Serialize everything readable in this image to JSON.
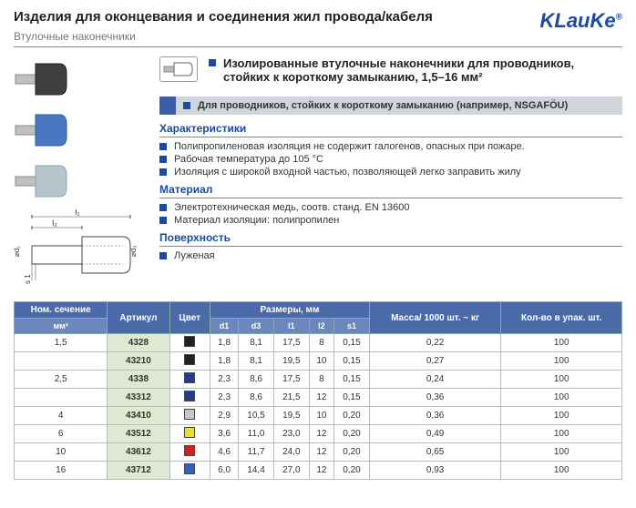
{
  "header": {
    "title": "Изделия для оконцевания и соединения жил провода/кабеля",
    "subtitle": "Втулочные наконечники",
    "brand": "KLauKe",
    "brand_mark": "®"
  },
  "visuals": {
    "ferrule_colors": [
      "#3f3f3f",
      "#4a78c0",
      "#b8c4cc"
    ],
    "pin_color": "#c0c0c0"
  },
  "product": {
    "headline": "Изолированные втулочные наконечники для проводников, стойких к короткому замыканию, 1,5–16 мм²",
    "note": "Для проводников, стойких к короткому замыканию (например, NSGAFÖU)",
    "sections": {
      "char_title": "Характеристики",
      "char_items": [
        "Полипропиленовая изоляция не содержит галогенов, опасных при пожаре.",
        "Рабочая температура до 105 °C",
        "Изоляция с широкой входной частью, позволяющей легко заправить жилу"
      ],
      "mat_title": "Материал",
      "mat_items": [
        "Электротехническая медь, соотв. станд. EN 13600",
        "Материал изоляции: полипропилен"
      ],
      "surf_title": "Поверхность",
      "surf_items": [
        "Луженая"
      ]
    }
  },
  "table": {
    "headers": {
      "nom": "Ном. сечение",
      "nom_sub": "мм²",
      "art": "Артикул",
      "color": "Цвет",
      "dims": "Размеры, мм",
      "d1": "d1",
      "d3": "d3",
      "l1": "l1",
      "l2": "l2",
      "s1": "s1",
      "mass": "Масса/ 1000 шт. ~ кг",
      "pack": "Кол-во в упак. шт."
    },
    "rows": [
      {
        "nom": "1,5",
        "art": "4328",
        "color": "#222222",
        "d1": "1,8",
        "d3": "8,1",
        "l1": "17,5",
        "l2": "8",
        "s1": "0,15",
        "mass": "0,22",
        "pack": "100"
      },
      {
        "nom": "",
        "art": "43210",
        "color": "#222222",
        "d1": "1,8",
        "d3": "8,1",
        "l1": "19,5",
        "l2": "10",
        "s1": "0,15",
        "mass": "0,27",
        "pack": "100"
      },
      {
        "nom": "2,5",
        "art": "4338",
        "color": "#2a3a8a",
        "d1": "2,3",
        "d3": "8,6",
        "l1": "17,5",
        "l2": "8",
        "s1": "0,15",
        "mass": "0,24",
        "pack": "100"
      },
      {
        "nom": "",
        "art": "43312",
        "color": "#2a3a8a",
        "d1": "2,3",
        "d3": "8,6",
        "l1": "21,5",
        "l2": "12",
        "s1": "0,15",
        "mass": "0,36",
        "pack": "100"
      },
      {
        "nom": "4",
        "art": "43410",
        "color": "#c8c8c8",
        "d1": "2,9",
        "d3": "10,5",
        "l1": "19,5",
        "l2": "10",
        "s1": "0,20",
        "mass": "0,36",
        "pack": "100"
      },
      {
        "nom": "6",
        "art": "43512",
        "color": "#e8e030",
        "d1": "3,6",
        "d3": "11,0",
        "l1": "23,0",
        "l2": "12",
        "s1": "0,20",
        "mass": "0,49",
        "pack": "100"
      },
      {
        "nom": "10",
        "art": "43612",
        "color": "#d02020",
        "d1": "4,6",
        "d3": "11,7",
        "l1": "24,0",
        "l2": "12",
        "s1": "0,20",
        "mass": "0,65",
        "pack": "100"
      },
      {
        "nom": "16",
        "art": "43712",
        "color": "#3060c0",
        "d1": "6,0",
        "d3": "14,4",
        "l1": "27,0",
        "l2": "12",
        "s1": "0,20",
        "mass": "0,93",
        "pack": "100"
      }
    ]
  },
  "diagram": {
    "labels": {
      "l1": "l₁",
      "l2": "l₂",
      "d1": "⌀d₁",
      "d3": "⌀d₃",
      "s1": "s 1"
    }
  },
  "colors": {
    "brand_blue": "#1a4ba0",
    "header_bg": "#4a6aa8",
    "subheader_bg": "#6b87bd",
    "article_bg": "#dfe8d0",
    "note_bg": "#d0d5db"
  }
}
